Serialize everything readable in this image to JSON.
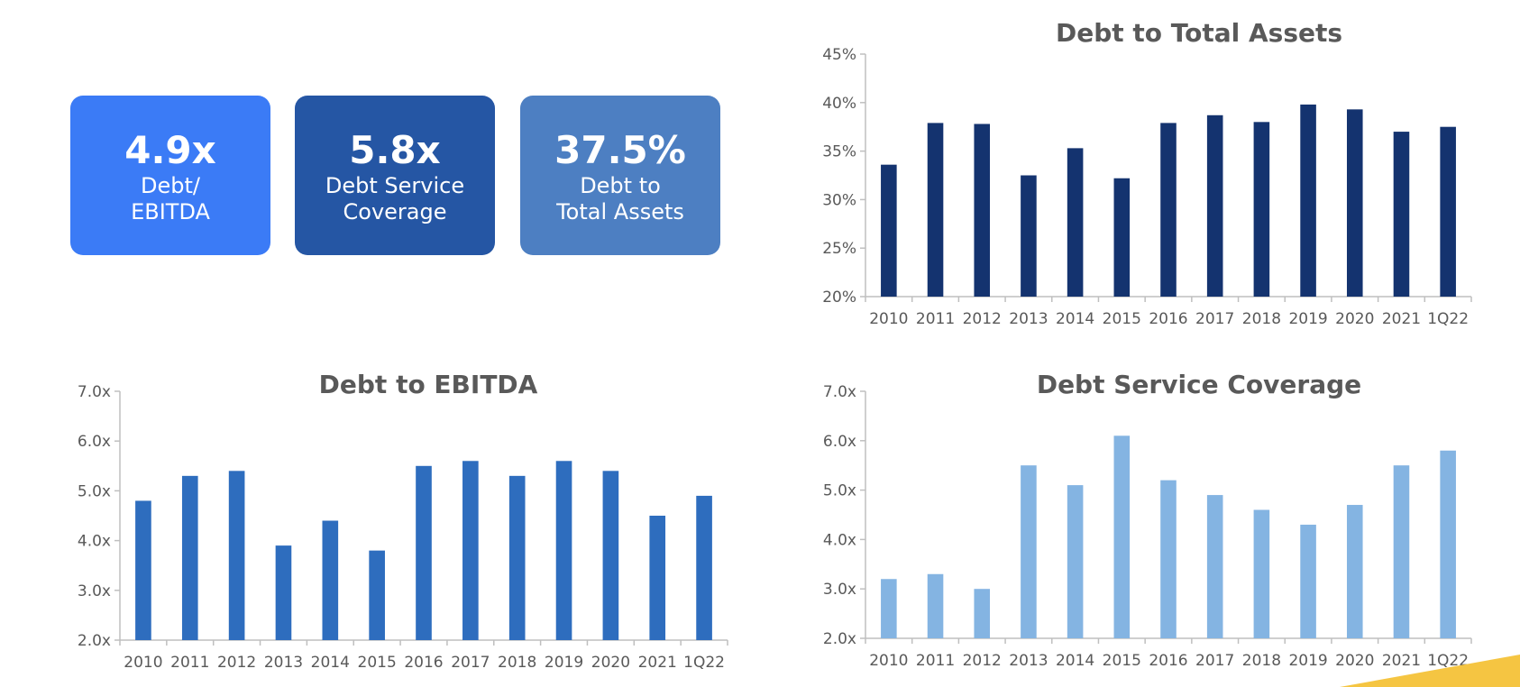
{
  "kpis": [
    {
      "value": "4.9x",
      "label_line1": "Debt/",
      "label_line2": "EBITDA",
      "color": "#3b7bf6"
    },
    {
      "value": "5.8x",
      "label_line1": "Debt Service",
      "label_line2": "Coverage",
      "color": "#2556a4"
    },
    {
      "value": "37.5%",
      "label_line1": "Debt to",
      "label_line2": "Total Assets",
      "color": "#4d7fc2"
    }
  ],
  "chart_data": [
    {
      "id": "debt-to-total-assets",
      "type": "bar",
      "title": "Debt to Total Assets",
      "categories": [
        "2010",
        "2011",
        "2012",
        "2013",
        "2014",
        "2015",
        "2016",
        "2017",
        "2018",
        "2019",
        "2020",
        "2021",
        "1Q22"
      ],
      "values": [
        33.6,
        37.9,
        37.8,
        32.5,
        35.3,
        32.2,
        37.9,
        38.7,
        38.0,
        39.8,
        39.3,
        37.0,
        37.5
      ],
      "ylim": [
        20,
        45
      ],
      "yticks": [
        20,
        25,
        30,
        35,
        40,
        45
      ],
      "ytick_labels": [
        "20%",
        "25%",
        "30%",
        "35%",
        "40%",
        "45%"
      ],
      "color": "#14336f",
      "grid": false
    },
    {
      "id": "debt-to-ebitda",
      "type": "bar",
      "title": "Debt to EBITDA",
      "categories": [
        "2010",
        "2011",
        "2012",
        "2013",
        "2014",
        "2015",
        "2016",
        "2017",
        "2018",
        "2019",
        "2020",
        "2021",
        "1Q22"
      ],
      "values": [
        4.8,
        5.3,
        5.4,
        3.9,
        4.4,
        3.8,
        5.5,
        5.6,
        5.3,
        5.6,
        5.4,
        4.5,
        4.9
      ],
      "ylim": [
        2,
        7
      ],
      "yticks": [
        2,
        3,
        4,
        5,
        6,
        7
      ],
      "ytick_labels": [
        "2.0x",
        "3.0x",
        "4.0x",
        "5.0x",
        "6.0x",
        "7.0x"
      ],
      "color": "#2e6dbe",
      "grid": false
    },
    {
      "id": "debt-service-coverage",
      "type": "bar",
      "title": "Debt Service Coverage",
      "categories": [
        "2010",
        "2011",
        "2012",
        "2013",
        "2014",
        "2015",
        "2016",
        "2017",
        "2018",
        "2019",
        "2020",
        "2021",
        "1Q22"
      ],
      "values": [
        3.2,
        3.3,
        3.0,
        5.5,
        5.1,
        6.1,
        5.2,
        4.9,
        4.6,
        4.3,
        4.7,
        5.5,
        5.8
      ],
      "ylim": [
        2,
        7
      ],
      "yticks": [
        2,
        3,
        4,
        5,
        6,
        7
      ],
      "ytick_labels": [
        "2.0x",
        "3.0x",
        "4.0x",
        "5.0x",
        "6.0x",
        "7.0x"
      ],
      "color": "#84b4e2",
      "grid": false
    }
  ],
  "decor": {
    "corner_color": "#f5c542"
  }
}
